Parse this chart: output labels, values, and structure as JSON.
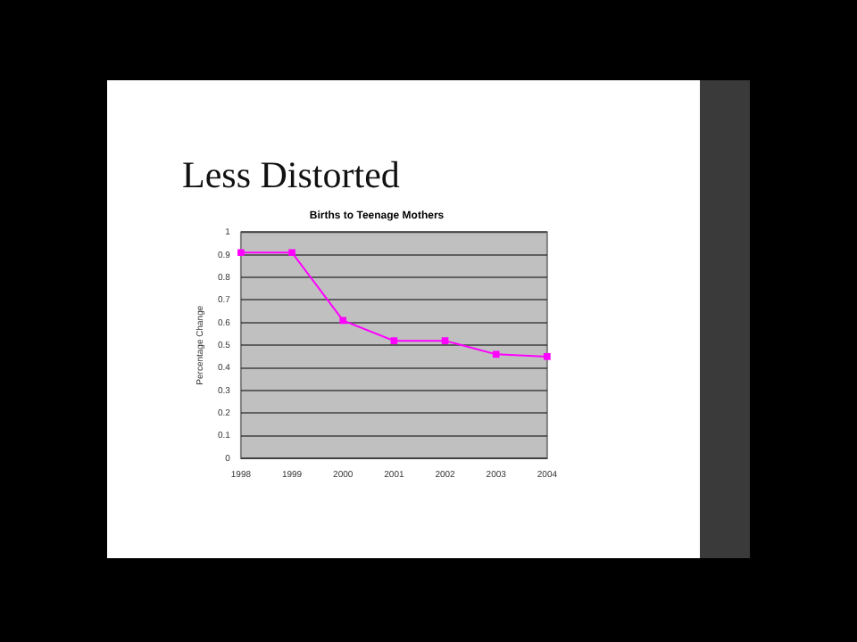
{
  "chart_data": {
    "type": "line",
    "title": "Births to Teenage Mothers",
    "ylabel": "Percentage Change",
    "annotations": [
      "Less Distorted"
    ],
    "categories": [
      "1998",
      "1999",
      "2000",
      "2001",
      "2002",
      "2003",
      "2004"
    ],
    "series": [
      {
        "color": "#ff00ff",
        "values": [
          0.91,
          0.91,
          0.61,
          0.52,
          0.52,
          0.46,
          0.45
        ]
      }
    ],
    "ylim": [
      0,
      1
    ],
    "yticks": [
      0,
      0.1,
      0.2,
      0.3,
      0.4,
      0.5,
      0.6,
      0.7,
      0.8,
      0.9,
      1
    ],
    "grid": "y",
    "legend": false,
    "marker": "square",
    "line_style": "solid"
  }
}
